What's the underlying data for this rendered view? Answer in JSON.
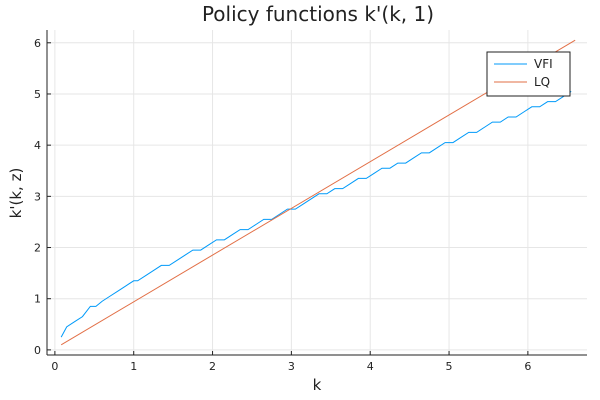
{
  "chart_data": {
    "type": "line",
    "title": "Policy functions k'(k, 1)",
    "xlabel": "k",
    "ylabel": "k'(k, z)",
    "xlim": [
      -0.1,
      6.75
    ],
    "ylim": [
      -0.1,
      6.25
    ],
    "xticks": [
      0,
      1,
      2,
      3,
      4,
      5,
      6
    ],
    "yticks": [
      0,
      1,
      2,
      3,
      4,
      5,
      6
    ],
    "grid": true,
    "legend": {
      "position": "top-right"
    },
    "series": [
      {
        "name": "VFI",
        "color": "#009AF9",
        "x": [
          0.08,
          0.15,
          0.25,
          0.35,
          0.45,
          0.52,
          0.6,
          0.7,
          0.8,
          0.9,
          1.0,
          1.05,
          1.15,
          1.25,
          1.35,
          1.45,
          1.55,
          1.65,
          1.75,
          1.85,
          1.95,
          2.05,
          2.15,
          2.25,
          2.35,
          2.45,
          2.55,
          2.65,
          2.75,
          2.85,
          2.95,
          3.05,
          3.15,
          3.25,
          3.35,
          3.45,
          3.55,
          3.65,
          3.75,
          3.85,
          3.95,
          4.05,
          4.15,
          4.25,
          4.35,
          4.45,
          4.55,
          4.65,
          4.75,
          4.85,
          4.95,
          5.05,
          5.15,
          5.25,
          5.35,
          5.45,
          5.55,
          5.65,
          5.75,
          5.85,
          5.95,
          6.05,
          6.15,
          6.25,
          6.35,
          6.45,
          6.55
        ],
        "y": [
          0.25,
          0.45,
          0.55,
          0.65,
          0.85,
          0.85,
          0.95,
          1.05,
          1.15,
          1.25,
          1.35,
          1.35,
          1.45,
          1.55,
          1.65,
          1.65,
          1.75,
          1.85,
          1.95,
          1.95,
          2.05,
          2.15,
          2.15,
          2.25,
          2.35,
          2.35,
          2.45,
          2.55,
          2.55,
          2.65,
          2.75,
          2.75,
          2.85,
          2.95,
          3.05,
          3.05,
          3.15,
          3.15,
          3.25,
          3.35,
          3.35,
          3.45,
          3.55,
          3.55,
          3.65,
          3.65,
          3.75,
          3.85,
          3.85,
          3.95,
          4.05,
          4.05,
          4.15,
          4.25,
          4.25,
          4.35,
          4.45,
          4.45,
          4.55,
          4.55,
          4.65,
          4.75,
          4.75,
          4.85,
          4.85,
          4.95,
          5.05
        ]
      },
      {
        "name": "LQ",
        "color": "#E26F46",
        "x": [
          0.08,
          6.6
        ],
        "y": [
          0.1,
          6.05
        ]
      }
    ]
  }
}
